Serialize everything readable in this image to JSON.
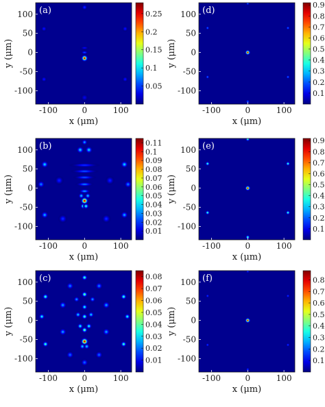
{
  "colors": {
    "cmap": "jet",
    "background": "#00008f"
  },
  "chart_data": [
    {
      "type": "heatmap",
      "panel_label": "(a)",
      "xlabel": "x (μm)",
      "ylabel": "y (μm)",
      "xlim": [
        -135,
        130
      ],
      "ylim": [
        -135,
        130
      ],
      "x_ticks": [
        -100,
        0,
        100
      ],
      "y_ticks": [
        -100,
        -50,
        0,
        50,
        100
      ],
      "x_tick_labels": [
        "-100",
        "0",
        "100"
      ],
      "y_tick_labels": [
        "-100",
        "-50",
        "0",
        "50",
        "100"
      ],
      "colorbar": {
        "min": 0,
        "max": 0.28,
        "ticks": [
          0.05,
          0.1,
          0.15,
          0.2,
          0.25
        ],
        "tick_labels": [
          "0.05",
          "0.1",
          "0.15",
          "0.2",
          "0.25"
        ]
      },
      "peaks": [
        {
          "x": 0,
          "y": -15,
          "value": 0.28,
          "sigma": 4.5
        },
        {
          "x": 0,
          "y": 0,
          "value": 0.06,
          "sigma": 5,
          "sy": 2.5
        },
        {
          "x": 0,
          "y": 12,
          "value": 0.035,
          "sigma": 6,
          "sy": 2.5
        },
        {
          "x": 0,
          "y": 118,
          "value": 0.05,
          "sigma": 4
        },
        {
          "x": -112,
          "y": 62,
          "value": 0.04,
          "sigma": 4
        },
        {
          "x": 112,
          "y": 62,
          "value": 0.04,
          "sigma": 4
        },
        {
          "x": -112,
          "y": -70,
          "value": 0.04,
          "sigma": 4
        },
        {
          "x": 112,
          "y": -70,
          "value": 0.04,
          "sigma": 4
        },
        {
          "x": 0,
          "y": -118,
          "value": 0.03,
          "sigma": 5
        }
      ]
    },
    {
      "type": "heatmap",
      "panel_label": "(d)",
      "xlabel": "x (μm)",
      "ylabel": "y (μm)",
      "xlim": [
        -135,
        130
      ],
      "ylim": [
        -135,
        130
      ],
      "x_ticks": [
        -100,
        0,
        100
      ],
      "y_ticks": [
        -100,
        -50,
        0,
        50,
        100
      ],
      "x_tick_labels": [
        "-100",
        "0",
        "100"
      ],
      "y_tick_labels": [
        "-100",
        "-50",
        "0",
        "50",
        "100"
      ],
      "colorbar": {
        "min": 0,
        "max": 0.92,
        "ticks": [
          0.1,
          0.2,
          0.3,
          0.4,
          0.5,
          0.6,
          0.7,
          0.8,
          0.9
        ],
        "tick_labels": [
          "0.1",
          "0.2",
          "0.3",
          "0.4",
          "0.5",
          "0.6",
          "0.7",
          "0.8",
          "0.9"
        ]
      },
      "peaks": [
        {
          "x": 0,
          "y": 0,
          "value": 0.92,
          "sigma": 3.5
        },
        {
          "x": 0,
          "y": 128,
          "value": 0.25,
          "sigma": 2.5
        },
        {
          "x": 0,
          "y": -128,
          "value": 0.25,
          "sigma": 2.5
        },
        {
          "x": -111,
          "y": 64,
          "value": 0.25,
          "sigma": 2.5
        },
        {
          "x": 111,
          "y": 64,
          "value": 0.25,
          "sigma": 2.5
        },
        {
          "x": -111,
          "y": -64,
          "value": 0.25,
          "sigma": 2.5
        },
        {
          "x": 111,
          "y": -64,
          "value": 0.25,
          "sigma": 2.5
        }
      ]
    },
    {
      "type": "heatmap",
      "panel_label": "(b)",
      "xlabel": "x (μm)",
      "ylabel": "y (μm)",
      "xlim": [
        -135,
        130
      ],
      "ylim": [
        -135,
        130
      ],
      "x_ticks": [
        -100,
        0,
        100
      ],
      "y_ticks": [
        -100,
        -50,
        0,
        50,
        100
      ],
      "x_tick_labels": [
        "-100",
        "0",
        "100"
      ],
      "y_tick_labels": [
        "-100",
        "-50",
        "0",
        "50",
        "100"
      ],
      "colorbar": {
        "min": 0,
        "max": 0.115,
        "ticks": [
          0.01,
          0.02,
          0.03,
          0.04,
          0.05,
          0.06,
          0.07,
          0.08,
          0.09,
          0.1,
          0.11
        ],
        "tick_labels": [
          "0.01",
          "0.02",
          "0.03",
          "0.04",
          "0.05",
          "0.06",
          "0.07",
          "0.08",
          "0.09",
          "0.1",
          "0.11"
        ]
      },
      "peaks": [
        {
          "x": 0,
          "y": -33,
          "value": 0.115,
          "sigma": 5
        },
        {
          "x": -4,
          "y": -47,
          "value": 0.05,
          "sigma": 4
        },
        {
          "x": 4,
          "y": -47,
          "value": 0.05,
          "sigma": 4
        },
        {
          "x": -9,
          "y": -20,
          "value": 0.04,
          "sigma": 4
        },
        {
          "x": 9,
          "y": -20,
          "value": 0.04,
          "sigma": 4
        },
        {
          "x": 0,
          "y": -8,
          "value": 0.035,
          "sigma": 8,
          "sy": 3
        },
        {
          "x": 0,
          "y": 10,
          "value": 0.03,
          "sigma": 12,
          "sy": 3
        },
        {
          "x": 0,
          "y": 28,
          "value": 0.025,
          "sigma": 15,
          "sy": 3
        },
        {
          "x": 0,
          "y": 44,
          "value": 0.025,
          "sigma": 18,
          "sy": 3
        },
        {
          "x": 0,
          "y": 60,
          "value": 0.02,
          "sigma": 20,
          "sy": 3
        },
        {
          "x": -12,
          "y": 100,
          "value": 0.04,
          "sigma": 5
        },
        {
          "x": 12,
          "y": 100,
          "value": 0.04,
          "sigma": 5
        },
        {
          "x": 0,
          "y": 120,
          "value": 0.035,
          "sigma": 4
        },
        {
          "x": -110,
          "y": 62,
          "value": 0.04,
          "sigma": 5
        },
        {
          "x": 110,
          "y": 62,
          "value": 0.04,
          "sigma": 5
        },
        {
          "x": -120,
          "y": 10,
          "value": 0.03,
          "sigma": 5
        },
        {
          "x": 120,
          "y": 10,
          "value": 0.03,
          "sigma": 5
        },
        {
          "x": -110,
          "y": -70,
          "value": 0.035,
          "sigma": 5
        },
        {
          "x": 110,
          "y": -70,
          "value": 0.035,
          "sigma": 5
        },
        {
          "x": -60,
          "y": -80,
          "value": 0.02,
          "sigma": 6
        },
        {
          "x": 60,
          "y": -80,
          "value": 0.02,
          "sigma": 6
        },
        {
          "x": -70,
          "y": 20,
          "value": 0.018,
          "sigma": 6
        },
        {
          "x": 70,
          "y": 20,
          "value": 0.018,
          "sigma": 6
        }
      ]
    },
    {
      "type": "heatmap",
      "panel_label": "(e)",
      "xlabel": "x (μm)",
      "ylabel": "y (μm)",
      "xlim": [
        -135,
        130
      ],
      "ylim": [
        -135,
        130
      ],
      "x_ticks": [
        -100,
        0,
        100
      ],
      "y_ticks": [
        -100,
        -50,
        0,
        50,
        100
      ],
      "x_tick_labels": [
        "-100",
        "0",
        "100"
      ],
      "y_tick_labels": [
        "-100",
        "-50",
        "0",
        "50",
        "100"
      ],
      "colorbar": {
        "min": 0,
        "max": 0.92,
        "ticks": [
          0.1,
          0.2,
          0.3,
          0.4,
          0.5,
          0.6,
          0.7,
          0.8,
          0.9
        ],
        "tick_labels": [
          "0.1",
          "0.2",
          "0.3",
          "0.4",
          "0.5",
          "0.6",
          "0.7",
          "0.8",
          "0.9"
        ]
      },
      "peaks": [
        {
          "x": 0,
          "y": 0,
          "value": 0.92,
          "sigma": 3.5
        },
        {
          "x": 0,
          "y": 128,
          "value": 0.45,
          "sigma": 3
        },
        {
          "x": 0,
          "y": -128,
          "value": 0.45,
          "sigma": 3
        },
        {
          "x": -111,
          "y": 64,
          "value": 0.45,
          "sigma": 3
        },
        {
          "x": 111,
          "y": 64,
          "value": 0.45,
          "sigma": 3
        },
        {
          "x": -111,
          "y": -64,
          "value": 0.45,
          "sigma": 3
        },
        {
          "x": 111,
          "y": -64,
          "value": 0.45,
          "sigma": 3
        }
      ]
    },
    {
      "type": "heatmap",
      "panel_label": "(c)",
      "xlabel": "x (μm)",
      "ylabel": "y (μm)",
      "xlim": [
        -135,
        130
      ],
      "ylim": [
        -135,
        130
      ],
      "x_ticks": [
        -100,
        0,
        100
      ],
      "y_ticks": [
        -100,
        -50,
        0,
        50,
        100
      ],
      "x_tick_labels": [
        "-100",
        "0",
        "100"
      ],
      "y_tick_labels": [
        "-100",
        "-50",
        "0",
        "50",
        "100"
      ],
      "colorbar": {
        "min": 0,
        "max": 0.085,
        "ticks": [
          0.01,
          0.02,
          0.03,
          0.04,
          0.05,
          0.06,
          0.07,
          0.08
        ],
        "tick_labels": [
          "0.01",
          "0.02",
          "0.03",
          "0.04",
          "0.05",
          "0.06",
          "0.07",
          "0.08"
        ]
      },
      "peaks": [
        {
          "x": 0,
          "y": -55,
          "value": 0.085,
          "sigma": 5
        },
        {
          "x": -6,
          "y": -68,
          "value": 0.03,
          "sigma": 4
        },
        {
          "x": 6,
          "y": -68,
          "value": 0.03,
          "sigma": 4
        },
        {
          "x": 0,
          "y": -25,
          "value": 0.045,
          "sigma": 4
        },
        {
          "x": -12,
          "y": -15,
          "value": 0.035,
          "sigma": 4
        },
        {
          "x": 12,
          "y": -15,
          "value": 0.035,
          "sigma": 4
        },
        {
          "x": 0,
          "y": 10,
          "value": 0.04,
          "sigma": 4
        },
        {
          "x": -18,
          "y": 15,
          "value": 0.03,
          "sigma": 4
        },
        {
          "x": 18,
          "y": 15,
          "value": 0.03,
          "sigma": 4
        },
        {
          "x": 0,
          "y": 35,
          "value": 0.035,
          "sigma": 4
        },
        {
          "x": 0,
          "y": 68,
          "value": 0.045,
          "sigma": 4
        },
        {
          "x": -22,
          "y": 55,
          "value": 0.025,
          "sigma": 4
        },
        {
          "x": 22,
          "y": 55,
          "value": 0.025,
          "sigma": 4
        },
        {
          "x": 0,
          "y": 112,
          "value": 0.04,
          "sigma": 4
        },
        {
          "x": -40,
          "y": 90,
          "value": 0.022,
          "sigma": 5
        },
        {
          "x": 40,
          "y": 90,
          "value": 0.022,
          "sigma": 5
        },
        {
          "x": -108,
          "y": 62,
          "value": 0.04,
          "sigma": 4
        },
        {
          "x": 108,
          "y": 62,
          "value": 0.04,
          "sigma": 4
        },
        {
          "x": -118,
          "y": 10,
          "value": 0.035,
          "sigma": 4
        },
        {
          "x": 118,
          "y": 10,
          "value": 0.035,
          "sigma": 4
        },
        {
          "x": -108,
          "y": -62,
          "value": 0.04,
          "sigma": 4
        },
        {
          "x": 108,
          "y": -62,
          "value": 0.04,
          "sigma": 4
        },
        {
          "x": -60,
          "y": 40,
          "value": 0.025,
          "sigma": 5
        },
        {
          "x": 60,
          "y": 40,
          "value": 0.025,
          "sigma": 5
        },
        {
          "x": -60,
          "y": -30,
          "value": 0.025,
          "sigma": 5
        },
        {
          "x": 60,
          "y": -30,
          "value": 0.025,
          "sigma": 5
        },
        {
          "x": -40,
          "y": -90,
          "value": 0.02,
          "sigma": 5
        },
        {
          "x": 40,
          "y": -90,
          "value": 0.02,
          "sigma": 5
        },
        {
          "x": 0,
          "y": -110,
          "value": 0.02,
          "sigma": 5
        }
      ]
    },
    {
      "type": "heatmap",
      "panel_label": "(f)",
      "xlabel": "x (μm)",
      "ylabel": "y (μm)",
      "xlim": [
        -135,
        130
      ],
      "ylim": [
        -135,
        130
      ],
      "x_ticks": [
        -100,
        0,
        100
      ],
      "y_ticks": [
        -100,
        -50,
        0,
        50,
        100
      ],
      "x_tick_labels": [
        "-100",
        "0",
        "100"
      ],
      "y_tick_labels": [
        "-100",
        "-50",
        "0",
        "50",
        "100"
      ],
      "colorbar": {
        "min": 0,
        "max": 0.88,
        "ticks": [
          0.1,
          0.2,
          0.3,
          0.4,
          0.5,
          0.6,
          0.7,
          0.8
        ],
        "tick_labels": [
          "0.1",
          "0.2",
          "0.3",
          "0.4",
          "0.5",
          "0.6",
          "0.7",
          "0.8"
        ]
      },
      "peaks": [
        {
          "x": 0,
          "y": 0,
          "value": 0.88,
          "sigma": 3.5
        },
        {
          "x": 0,
          "y": 128,
          "value": 0.18,
          "sigma": 2.5
        },
        {
          "x": 0,
          "y": -128,
          "value": 0.18,
          "sigma": 2.5
        },
        {
          "x": -111,
          "y": 64,
          "value": 0.18,
          "sigma": 2.5
        },
        {
          "x": 111,
          "y": 64,
          "value": 0.18,
          "sigma": 2.5
        },
        {
          "x": -111,
          "y": -64,
          "value": 0.18,
          "sigma": 2.5
        },
        {
          "x": 111,
          "y": -64,
          "value": 0.18,
          "sigma": 2.5
        }
      ]
    }
  ]
}
